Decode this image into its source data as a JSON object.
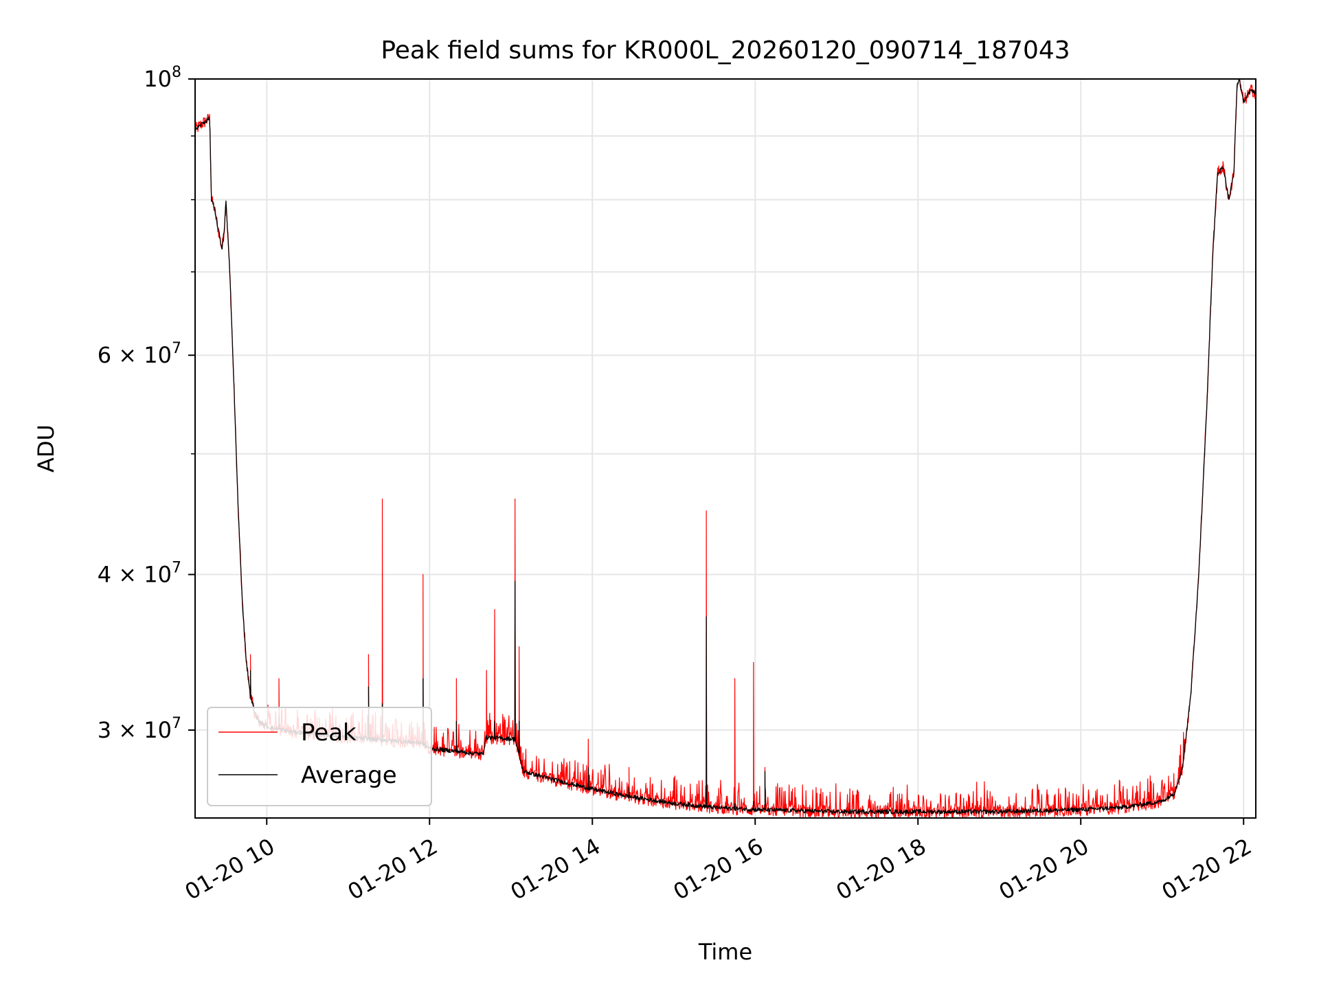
{
  "chart_data": {
    "type": "line",
    "title": "Peak field sums for KR000L_20260120_090714_187043",
    "xlabel": "Time",
    "ylabel": "ADU",
    "yscale": "log",
    "xlim": [
      9.12,
      22.15
    ],
    "ylim": [
      25500000,
      100000000
    ],
    "grid": true,
    "legend_position": "lower-left",
    "x_unit": "hour of day 2026-01-20",
    "x_ticks": [
      {
        "value": 10,
        "label": "01-20 10"
      },
      {
        "value": 12,
        "label": "01-20 12"
      },
      {
        "value": 14,
        "label": "01-20 14"
      },
      {
        "value": 16,
        "label": "01-20 16"
      },
      {
        "value": 18,
        "label": "01-20 18"
      },
      {
        "value": 20,
        "label": "01-20 20"
      },
      {
        "value": 22,
        "label": "01-20 22"
      }
    ],
    "y_major_ticks": [
      {
        "value": 30000000,
        "label_base": "3 × 10",
        "label_exp": "7"
      },
      {
        "value": 40000000,
        "label_base": "4 × 10",
        "label_exp": "7"
      },
      {
        "value": 60000000,
        "label_base": "6 × 10",
        "label_exp": "7"
      },
      {
        "value": 100000000,
        "label_base": "10",
        "label_exp": "8"
      }
    ],
    "y_minor_ticks": [
      50000000,
      70000000,
      80000000,
      90000000
    ],
    "baseline": {
      "x": [
        9.12,
        9.2,
        9.3,
        9.32,
        9.35,
        9.4,
        9.45,
        9.48,
        9.5,
        9.55,
        9.6,
        9.65,
        9.7,
        9.75,
        9.8,
        9.85,
        9.9,
        10.0,
        10.3,
        11.0,
        11.9,
        12.0,
        12.65,
        12.7,
        13.05,
        13.15,
        13.5,
        14.0,
        14.5,
        15.0,
        15.5,
        16.0,
        17.0,
        18.0,
        19.0,
        20.0,
        20.5,
        21.0,
        21.15,
        21.25,
        21.35,
        21.45,
        21.55,
        21.62,
        21.68,
        21.75,
        21.82,
        21.88,
        21.92,
        21.95,
        21.98,
        22.0,
        22.05,
        22.1,
        22.15
      ],
      "y": [
        91000000,
        92000000,
        93000000,
        80000000,
        79000000,
        76000000,
        73000000,
        76000000,
        80000000,
        69000000,
        56000000,
        45000000,
        38000000,
        34000000,
        32000000,
        31000000,
        30500000,
        30200000,
        29900000,
        29600000,
        29300000,
        29000000,
        28700000,
        29600000,
        29500000,
        27800000,
        27400000,
        26900000,
        26500000,
        26200000,
        26000000,
        25900000,
        25800000,
        25800000,
        25800000,
        25900000,
        26000000,
        26300000,
        26700000,
        28000000,
        32000000,
        40000000,
        55000000,
        72000000,
        84000000,
        85000000,
        80000000,
        84000000,
        99000000,
        100000000,
        97000000,
        96000000,
        97000000,
        98000000,
        97500000
      ]
    },
    "series": [
      {
        "name": "Peak",
        "color": "#ff0000",
        "noise": 0.012,
        "spike_rate": 0.22,
        "spike_amp": 0.045
      },
      {
        "name": "Average",
        "color": "#000000",
        "noise": 0.004,
        "spike_rate": 0.0,
        "spike_amp": 0.0
      }
    ],
    "events": [
      {
        "x": 9.8,
        "peak": 34500000,
        "average": 33500000
      },
      {
        "x": 10.15,
        "peak": 33000000,
        "average": 30800000
      },
      {
        "x": 11.25,
        "peak": 34500000,
        "average": 32500000
      },
      {
        "x": 11.42,
        "peak": 46000000,
        "average": 31500000
      },
      {
        "x": 11.92,
        "peak": 40000000,
        "average": 33000000
      },
      {
        "x": 12.33,
        "peak": 33000000,
        "average": 30500000
      },
      {
        "x": 12.7,
        "peak": 33500000,
        "average": 29700000
      },
      {
        "x": 12.8,
        "peak": 37500000,
        "average": 30500000
      },
      {
        "x": 13.05,
        "peak": 46000000,
        "average": 39500000
      },
      {
        "x": 13.1,
        "peak": 35000000,
        "average": 30500000
      },
      {
        "x": 13.95,
        "peak": 29500000,
        "average": 28000000
      },
      {
        "x": 14.45,
        "peak": 28000000,
        "average": 27000000
      },
      {
        "x": 15.4,
        "peak": 45000000,
        "average": 37000000
      },
      {
        "x": 15.75,
        "peak": 33000000,
        "average": 26200000
      },
      {
        "x": 15.98,
        "peak": 34000000,
        "average": 26300000
      },
      {
        "x": 16.12,
        "peak": 28000000,
        "average": 27800000
      }
    ]
  }
}
